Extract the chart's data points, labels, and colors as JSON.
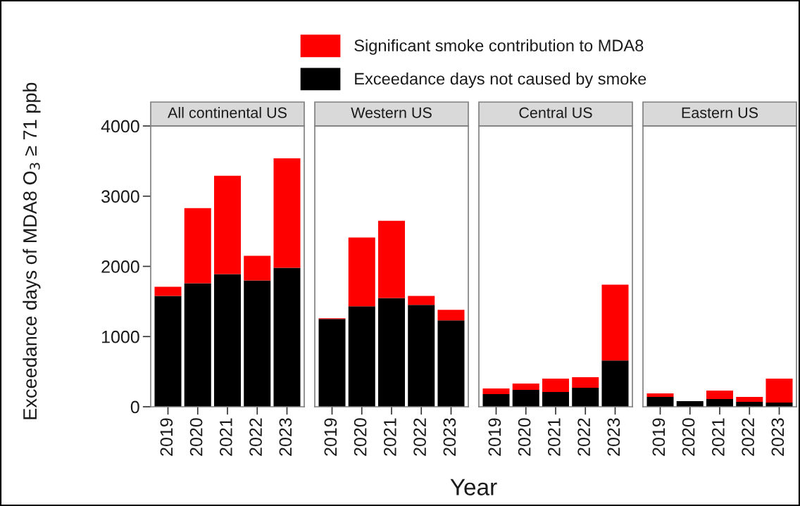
{
  "chart_data": [
    {
      "type": "bar",
      "title": "All continental US",
      "categories": [
        "2019",
        "2020",
        "2021",
        "2022",
        "2023"
      ],
      "stacked": true,
      "ylim": [
        0,
        4000
      ],
      "yticks": [
        0,
        1000,
        2000,
        3000,
        4000
      ],
      "ylabel": "Exceedance days of MDA8 O$_{3}$ ≥ 71 ppb",
      "legend": "top",
      "annotations": [
        "Year"
      ],
      "series": [
        {
          "name": "Exceedance days not caused by smoke",
          "color": "#000000",
          "values": [
            1580,
            1760,
            1890,
            1800,
            1980
          ]
        },
        {
          "name": "Significant smoke contribution to MDA8",
          "color": "#ff0000",
          "values": [
            130,
            1070,
            1400,
            350,
            1560
          ]
        }
      ]
    },
    {
      "type": "bar",
      "title": "Western US",
      "categories": [
        "2019",
        "2020",
        "2021",
        "2022",
        "2023"
      ],
      "stacked": true,
      "ylim": [
        0,
        4000
      ],
      "yticks": [
        0,
        1000,
        2000,
        3000,
        4000
      ],
      "tick_labels": "x",
      "series": [
        {
          "color": "#000000",
          "values": [
            1250,
            1430,
            1550,
            1450,
            1230
          ]
        },
        {
          "color": "#ff0000",
          "values": [
            10,
            980,
            1100,
            130,
            150
          ]
        }
      ]
    },
    {
      "type": "bar",
      "title": "Central US",
      "categories": [
        "2019",
        "2020",
        "2021",
        "2022",
        "2023"
      ],
      "stacked": true,
      "ylim": [
        0,
        4000
      ],
      "yticks": [
        0,
        1000,
        2000,
        3000,
        4000
      ],
      "tick_labels": "x",
      "series": [
        {
          "color": "#000000",
          "values": [
            180,
            240,
            210,
            270,
            660
          ]
        },
        {
          "color": "#ff0000",
          "values": [
            80,
            90,
            190,
            150,
            1080
          ]
        }
      ]
    },
    {
      "type": "bar",
      "title": "Eastern US",
      "categories": [
        "2019",
        "2020",
        "2021",
        "2022",
        "2023"
      ],
      "stacked": true,
      "ylim": [
        0,
        4000
      ],
      "yticks": [
        0,
        1000,
        2000,
        3000,
        4000
      ],
      "tick_labels": "x",
      "series": [
        {
          "color": "#000000",
          "values": [
            140,
            80,
            110,
            70,
            60
          ]
        },
        {
          "color": "#ff0000",
          "values": [
            50,
            null,
            120,
            70,
            340
          ]
        }
      ]
    }
  ]
}
